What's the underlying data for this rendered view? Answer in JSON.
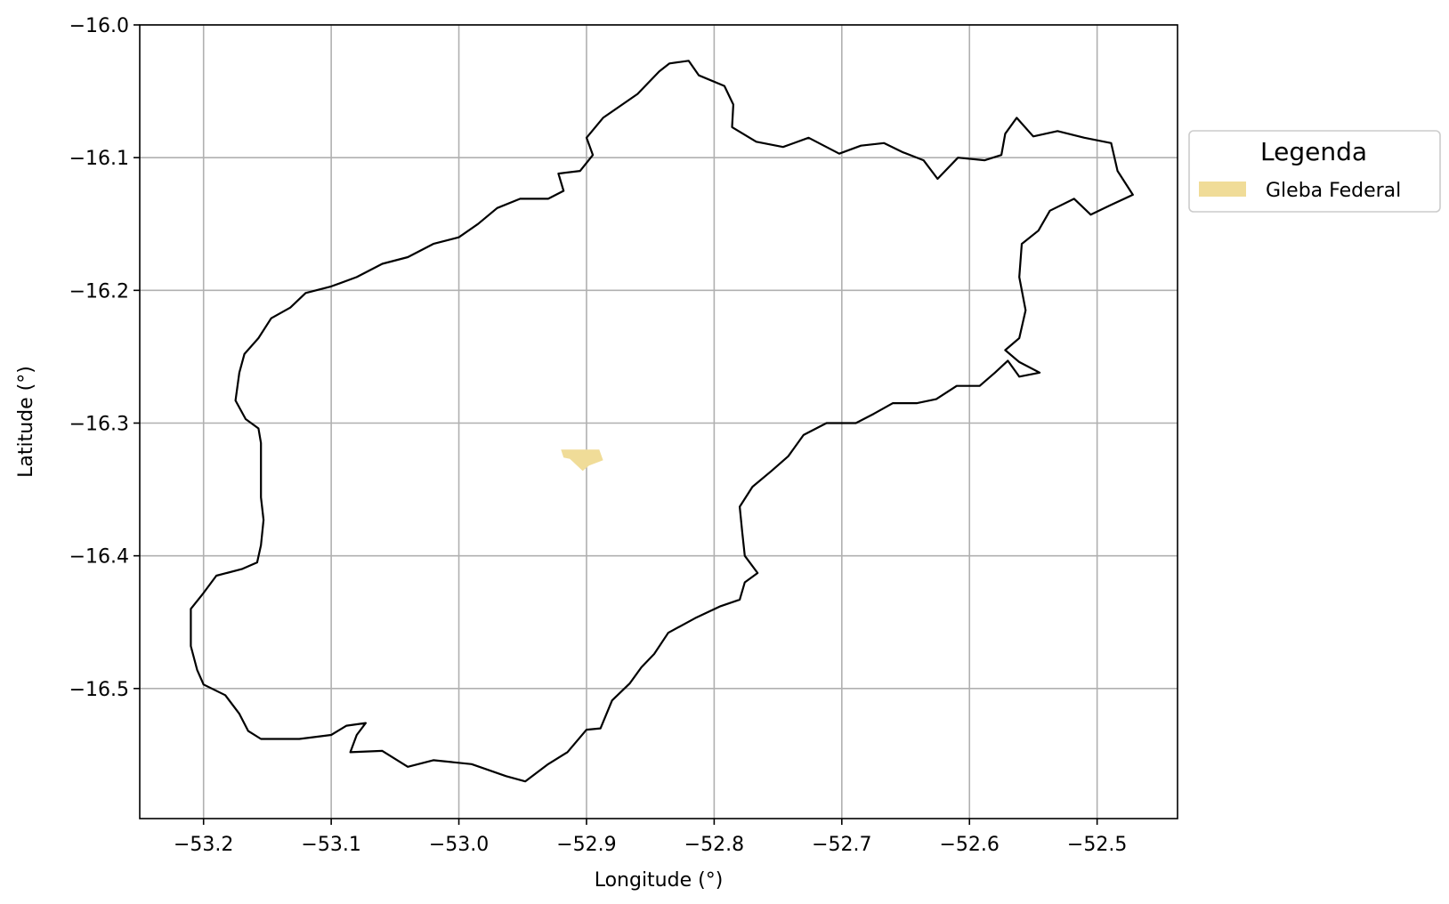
{
  "chart_data": {
    "type": "map",
    "xlabel": "Longitude (°)",
    "ylabel": "Latitude (°)",
    "xlim": [
      -53.25,
      -52.437
    ],
    "ylim": [
      -16.598,
      -16.0
    ],
    "x_ticks": [
      -53.2,
      -53.1,
      -53.0,
      -52.9,
      -52.8,
      -52.7,
      -52.6,
      -52.5
    ],
    "x_tick_labels": [
      "−53.2",
      "−53.1",
      "−53.0",
      "−52.9",
      "−52.8",
      "−52.7",
      "−52.6",
      "−52.5"
    ],
    "y_ticks": [
      -16.0,
      -16.1,
      -16.2,
      -16.3,
      -16.4,
      -16.5
    ],
    "y_tick_labels": [
      "−16.0",
      "−16.1",
      "−16.2",
      "−16.3",
      "−16.4",
      "−16.5"
    ],
    "grid": true,
    "legend": {
      "title": "Legenda",
      "placement": "outside-right-top",
      "entries": [
        {
          "label": "Gleba Federal",
          "color": "#f0dc98"
        }
      ]
    },
    "boundary": {
      "stroke": "#000000",
      "points": [
        [
          -52.82,
          -16.027
        ],
        [
          -52.812,
          -16.038
        ],
        [
          -52.792,
          -16.046
        ],
        [
          -52.785,
          -16.06
        ],
        [
          -52.786,
          -16.077
        ],
        [
          -52.767,
          -16.088
        ],
        [
          -52.746,
          -16.092
        ],
        [
          -52.726,
          -16.085
        ],
        [
          -52.702,
          -16.097
        ],
        [
          -52.685,
          -16.091
        ],
        [
          -52.667,
          -16.089
        ],
        [
          -52.652,
          -16.096
        ],
        [
          -52.636,
          -16.102
        ],
        [
          -52.625,
          -16.116
        ],
        [
          -52.609,
          -16.1
        ],
        [
          -52.588,
          -16.102
        ],
        [
          -52.575,
          -16.098
        ],
        [
          -52.572,
          -16.082
        ],
        [
          -52.563,
          -16.07
        ],
        [
          -52.55,
          -16.084
        ],
        [
          -52.531,
          -16.08
        ],
        [
          -52.51,
          -16.085
        ],
        [
          -52.489,
          -16.089
        ],
        [
          -52.484,
          -16.11
        ],
        [
          -52.472,
          -16.128
        ],
        [
          -52.49,
          -16.136
        ],
        [
          -52.505,
          -16.143
        ],
        [
          -52.518,
          -16.131
        ],
        [
          -52.537,
          -16.14
        ],
        [
          -52.546,
          -16.155
        ],
        [
          -52.559,
          -16.165
        ],
        [
          -52.561,
          -16.19
        ],
        [
          -52.556,
          -16.215
        ],
        [
          -52.561,
          -16.236
        ],
        [
          -52.572,
          -16.245
        ],
        [
          -52.561,
          -16.254
        ],
        [
          -52.545,
          -16.262
        ],
        [
          -52.561,
          -16.265
        ],
        [
          -52.57,
          -16.253
        ],
        [
          -52.58,
          -16.262
        ],
        [
          -52.592,
          -16.272
        ],
        [
          -52.61,
          -16.272
        ],
        [
          -52.626,
          -16.282
        ],
        [
          -52.641,
          -16.285
        ],
        [
          -52.66,
          -16.285
        ],
        [
          -52.675,
          -16.293
        ],
        [
          -52.689,
          -16.3
        ],
        [
          -52.712,
          -16.3
        ],
        [
          -52.73,
          -16.309
        ],
        [
          -52.742,
          -16.325
        ],
        [
          -52.755,
          -16.336
        ],
        [
          -52.77,
          -16.348
        ],
        [
          -52.78,
          -16.363
        ],
        [
          -52.778,
          -16.382
        ],
        [
          -52.776,
          -16.4
        ],
        [
          -52.766,
          -16.413
        ],
        [
          -52.776,
          -16.42
        ],
        [
          -52.78,
          -16.433
        ],
        [
          -52.795,
          -16.438
        ],
        [
          -52.815,
          -16.447
        ],
        [
          -52.836,
          -16.458
        ],
        [
          -52.847,
          -16.474
        ],
        [
          -52.857,
          -16.484
        ],
        [
          -52.866,
          -16.496
        ],
        [
          -52.88,
          -16.509
        ],
        [
          -52.889,
          -16.53
        ],
        [
          -52.9,
          -16.531
        ],
        [
          -52.915,
          -16.548
        ],
        [
          -52.93,
          -16.557
        ],
        [
          -52.948,
          -16.57
        ],
        [
          -52.963,
          -16.566
        ],
        [
          -52.99,
          -16.557
        ],
        [
          -53.02,
          -16.554
        ],
        [
          -53.04,
          -16.559
        ],
        [
          -53.06,
          -16.547
        ],
        [
          -53.085,
          -16.548
        ],
        [
          -53.08,
          -16.535
        ],
        [
          -53.073,
          -16.526
        ],
        [
          -53.088,
          -16.528
        ],
        [
          -53.1,
          -16.535
        ],
        [
          -53.125,
          -16.538
        ],
        [
          -53.155,
          -16.538
        ],
        [
          -53.165,
          -16.532
        ],
        [
          -53.172,
          -16.519
        ],
        [
          -53.183,
          -16.505
        ],
        [
          -53.2,
          -16.497
        ],
        [
          -53.205,
          -16.486
        ],
        [
          -53.21,
          -16.468
        ],
        [
          -53.21,
          -16.44
        ],
        [
          -53.2,
          -16.428
        ],
        [
          -53.19,
          -16.415
        ],
        [
          -53.17,
          -16.41
        ],
        [
          -53.158,
          -16.405
        ],
        [
          -53.155,
          -16.392
        ],
        [
          -53.153,
          -16.373
        ],
        [
          -53.155,
          -16.356
        ],
        [
          -53.155,
          -16.335
        ],
        [
          -53.155,
          -16.315
        ],
        [
          -53.157,
          -16.304
        ],
        [
          -53.167,
          -16.297
        ],
        [
          -53.175,
          -16.283
        ],
        [
          -53.172,
          -16.262
        ],
        [
          -53.168,
          -16.248
        ],
        [
          -53.157,
          -16.236
        ],
        [
          -53.147,
          -16.221
        ],
        [
          -53.132,
          -16.213
        ],
        [
          -53.12,
          -16.202
        ],
        [
          -53.1,
          -16.197
        ],
        [
          -53.08,
          -16.19
        ],
        [
          -53.06,
          -16.18
        ],
        [
          -53.04,
          -16.175
        ],
        [
          -53.02,
          -16.165
        ],
        [
          -53.0,
          -16.16
        ],
        [
          -52.985,
          -16.15
        ],
        [
          -52.97,
          -16.138
        ],
        [
          -52.952,
          -16.131
        ],
        [
          -52.93,
          -16.131
        ],
        [
          -52.918,
          -16.125
        ],
        [
          -52.922,
          -16.112
        ],
        [
          -52.905,
          -16.11
        ],
        [
          -52.895,
          -16.098
        ],
        [
          -52.9,
          -16.085
        ],
        [
          -52.887,
          -16.07
        ],
        [
          -52.86,
          -16.052
        ],
        [
          -52.843,
          -16.035
        ],
        [
          -52.835,
          -16.029
        ],
        [
          -52.82,
          -16.027
        ]
      ]
    },
    "regions": [
      {
        "label": "Gleba Federal",
        "color": "#f0dc98",
        "points": [
          [
            -52.92,
            -16.32
          ],
          [
            -52.89,
            -16.32
          ],
          [
            -52.887,
            -16.328
          ],
          [
            -52.898,
            -16.332
          ],
          [
            -52.903,
            -16.336
          ],
          [
            -52.913,
            -16.327
          ],
          [
            -52.918,
            -16.326
          ]
        ]
      }
    ]
  }
}
